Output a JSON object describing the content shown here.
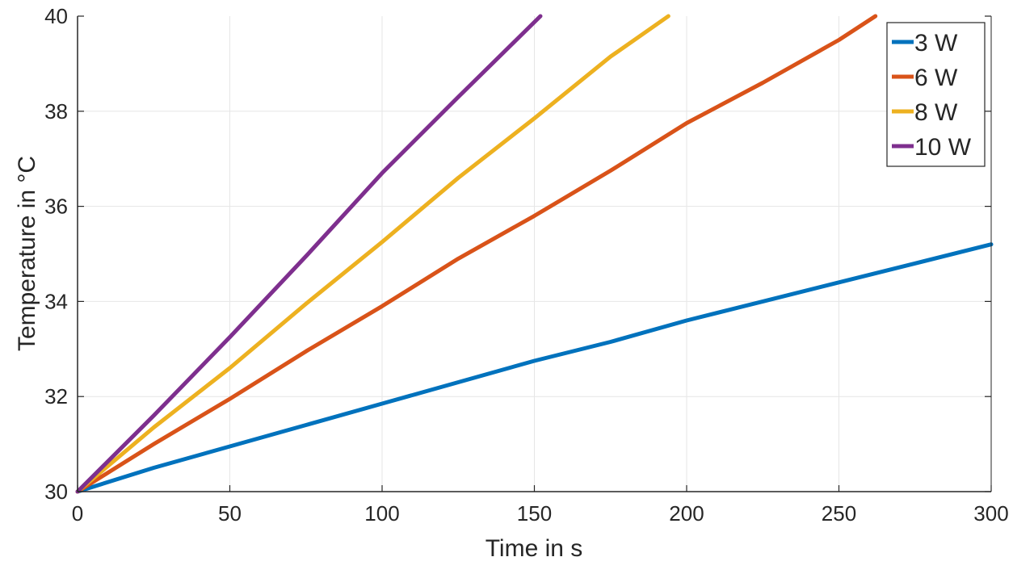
{
  "chart_data": {
    "type": "line",
    "title": "",
    "xlabel": "Time in s",
    "ylabel": "Temperature in °C",
    "xlim": [
      0,
      300
    ],
    "ylim": [
      30,
      40
    ],
    "xticks": [
      0,
      50,
      100,
      150,
      200,
      250,
      300
    ],
    "yticks": [
      30,
      32,
      34,
      36,
      38,
      40
    ],
    "grid": true,
    "legend_position": "top-right",
    "series": [
      {
        "name": "3 W",
        "color": "#0072BD",
        "x": [
          0,
          25,
          50,
          75,
          100,
          125,
          150,
          175,
          200,
          225,
          250,
          275,
          300
        ],
        "y": [
          30.0,
          30.5,
          30.95,
          31.4,
          31.85,
          32.3,
          32.75,
          33.15,
          33.6,
          34.0,
          34.4,
          34.8,
          35.2
        ]
      },
      {
        "name": "6 W",
        "color": "#D95319",
        "x": [
          0,
          25,
          50,
          75,
          100,
          125,
          150,
          175,
          200,
          225,
          250,
          262
        ],
        "y": [
          30.0,
          31.0,
          31.95,
          32.95,
          33.9,
          34.9,
          35.8,
          36.75,
          37.75,
          38.6,
          39.5,
          40.0
        ]
      },
      {
        "name": "8 W",
        "color": "#EDB120",
        "x": [
          0,
          25,
          50,
          75,
          100,
          125,
          150,
          175,
          194
        ],
        "y": [
          30.0,
          31.35,
          32.6,
          33.95,
          35.25,
          36.6,
          37.85,
          39.15,
          40.0
        ]
      },
      {
        "name": "10 W",
        "color": "#7E2F8E",
        "x": [
          0,
          25,
          50,
          75,
          100,
          125,
          152
        ],
        "y": [
          30.0,
          31.6,
          33.25,
          34.95,
          36.7,
          38.3,
          40.0
        ]
      }
    ]
  }
}
